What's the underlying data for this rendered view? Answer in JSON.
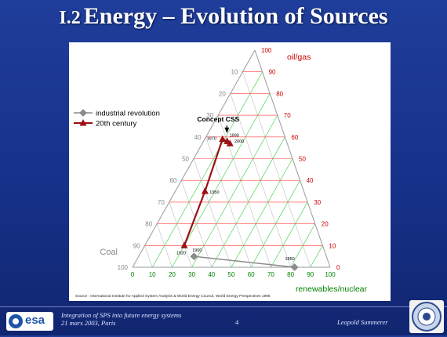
{
  "slide": {
    "title_number": "I.2",
    "title_text": "Energy – Evolution of Sources",
    "source": "Source : International Institute for Applied System Analysis & World Energy Council, World Energy Perspectives 1998",
    "footer_line1": "Integration of SPS into future energy systems",
    "footer_line2": "21 mars 2003, Paris",
    "page_number": "4",
    "author": "Leopold Summerer",
    "logo_text": "esa"
  },
  "colors": {
    "industrial": "#8c8c8c",
    "twentieth": "#9b1114",
    "oil_axis": "#cc0000",
    "renewables_axis": "#008000",
    "coal_axis": "#888888",
    "grid_red": "#ff3333",
    "grid_green": "#33cc33",
    "grid_gray": "#bfbfbf"
  },
  "chart_data": {
    "type": "scatter",
    "subtype": "ternary",
    "axes": {
      "oil_gas": {
        "label": "oil/gas",
        "ticks": [
          0,
          10,
          20,
          30,
          40,
          50,
          60,
          70,
          80,
          90,
          100
        ]
      },
      "renewables_nuclear": {
        "label": "renewables/nuclear",
        "ticks": [
          0,
          10,
          20,
          30,
          40,
          50,
          60,
          70,
          80,
          90,
          100
        ]
      },
      "coal": {
        "label": "Coal",
        "ticks": [
          100,
          90,
          80,
          70,
          60,
          50,
          40,
          30,
          20,
          10,
          0
        ]
      }
    },
    "grid": true,
    "legend_position": "top-left",
    "annotation": "Concept CSS",
    "series": [
      {
        "name": "industrial revolution",
        "points": [
          {
            "label": "1850",
            "oil_gas": 0,
            "renewables_nuclear": 82,
            "coal": 18
          },
          {
            "label": "1900",
            "oil_gas": 5,
            "renewables_nuclear": 28,
            "coal": 67
          }
        ]
      },
      {
        "name": "20th century",
        "points": [
          {
            "label": "1920",
            "oil_gas": 10,
            "renewables_nuclear": 20,
            "coal": 70
          },
          {
            "label": "1950",
            "oil_gas": 35,
            "renewables_nuclear": 15,
            "coal": 50
          },
          {
            "label": "1970",
            "oil_gas": 59,
            "renewables_nuclear": 9,
            "coal": 32
          },
          {
            "label": "1990",
            "oil_gas": 58,
            "renewables_nuclear": 12,
            "coal": 30
          },
          {
            "label": "2000",
            "oil_gas": 57,
            "renewables_nuclear": 14,
            "coal": 29
          }
        ]
      }
    ]
  }
}
